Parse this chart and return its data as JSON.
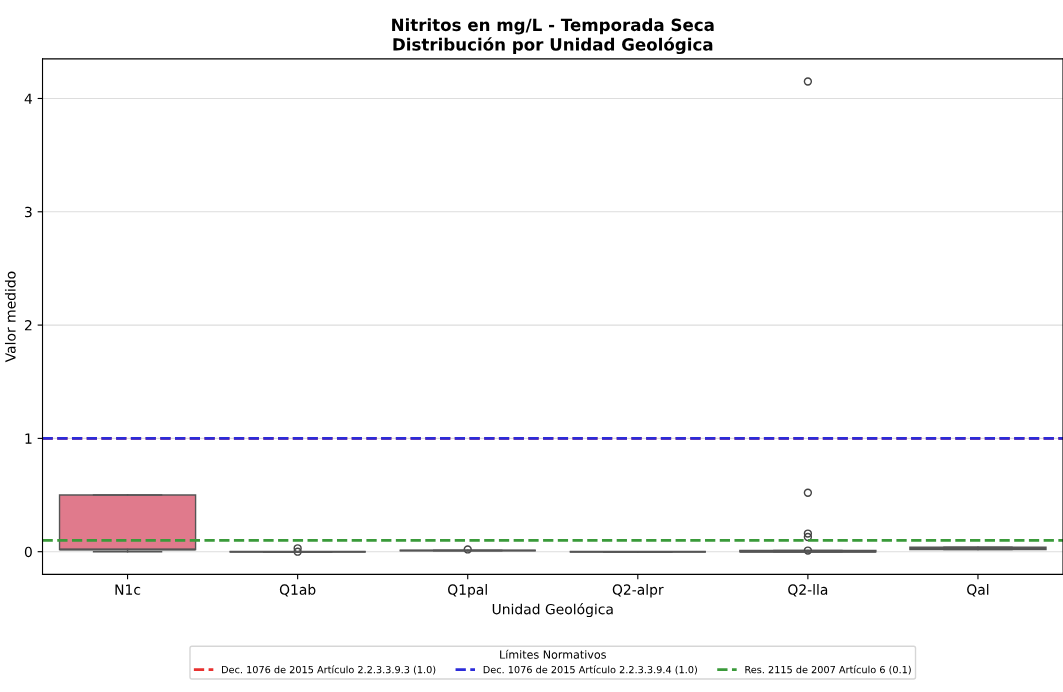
{
  "chart_data": {
    "type": "box",
    "title": "Nitritos en mg/L - Temporada Seca\nDistribución por Unidad Geológica",
    "xlabel": "Unidad Geológica",
    "ylabel": "Valor medido",
    "categories": [
      "N1c",
      "Q1ab",
      "Q1pal",
      "Q2-alpr",
      "Q2-lla",
      "Qal"
    ],
    "colors": [
      "#e07a8c",
      "#555555",
      "#555555",
      "#555555",
      "#555555",
      "#555555"
    ],
    "boxes": [
      {
        "low": 0,
        "q1": 0.02,
        "median": 0.02,
        "q3": 0.5,
        "high": 0.5
      },
      {
        "low": 0,
        "q1": 0,
        "median": 0,
        "q3": 0,
        "high": 0,
        "outliers": [
          0.03,
          0.0
        ]
      },
      {
        "low": 0.01,
        "q1": 0.01,
        "median": 0.01,
        "q3": 0.01,
        "high": 0.01,
        "outliers": [
          0.02
        ]
      },
      {
        "low": 0,
        "q1": 0,
        "median": 0,
        "q3": 0,
        "high": 0
      },
      {
        "low": 0,
        "q1": 0,
        "median": 0,
        "q3": 0.01,
        "high": 0.01,
        "outliers": [
          4.15,
          0.52,
          0.16,
          0.13,
          0.01
        ]
      },
      {
        "low": 0.02,
        "q1": 0.02,
        "median": 0.03,
        "q3": 0.04,
        "high": 0.04
      }
    ],
    "ylim": [
      -0.2,
      4.35
    ],
    "yticks": [
      0,
      1,
      2,
      3,
      4
    ],
    "grid": "y",
    "legend": "bottom",
    "legend_title": "Límites Normativos",
    "ref_lines": [
      {
        "axis": "y",
        "value": 1.0,
        "label": "Dec. 1076 de 2015 Artículo 2.2.3.3.9.3 (1.0)",
        "color": "#e8312f",
        "line_style": "dashed"
      },
      {
        "axis": "y",
        "value": 1.0,
        "label": "Dec. 1076 de 2015 Artículo 2.2.3.3.9.4 (1.0)",
        "color": "#2b2bd9",
        "line_style": "dashed"
      },
      {
        "axis": "y",
        "value": 0.1,
        "label": "Res. 2115 de 2007 Artículo 6 (0.1)",
        "color": "#3a9a3a",
        "line_style": "dashed"
      }
    ]
  }
}
